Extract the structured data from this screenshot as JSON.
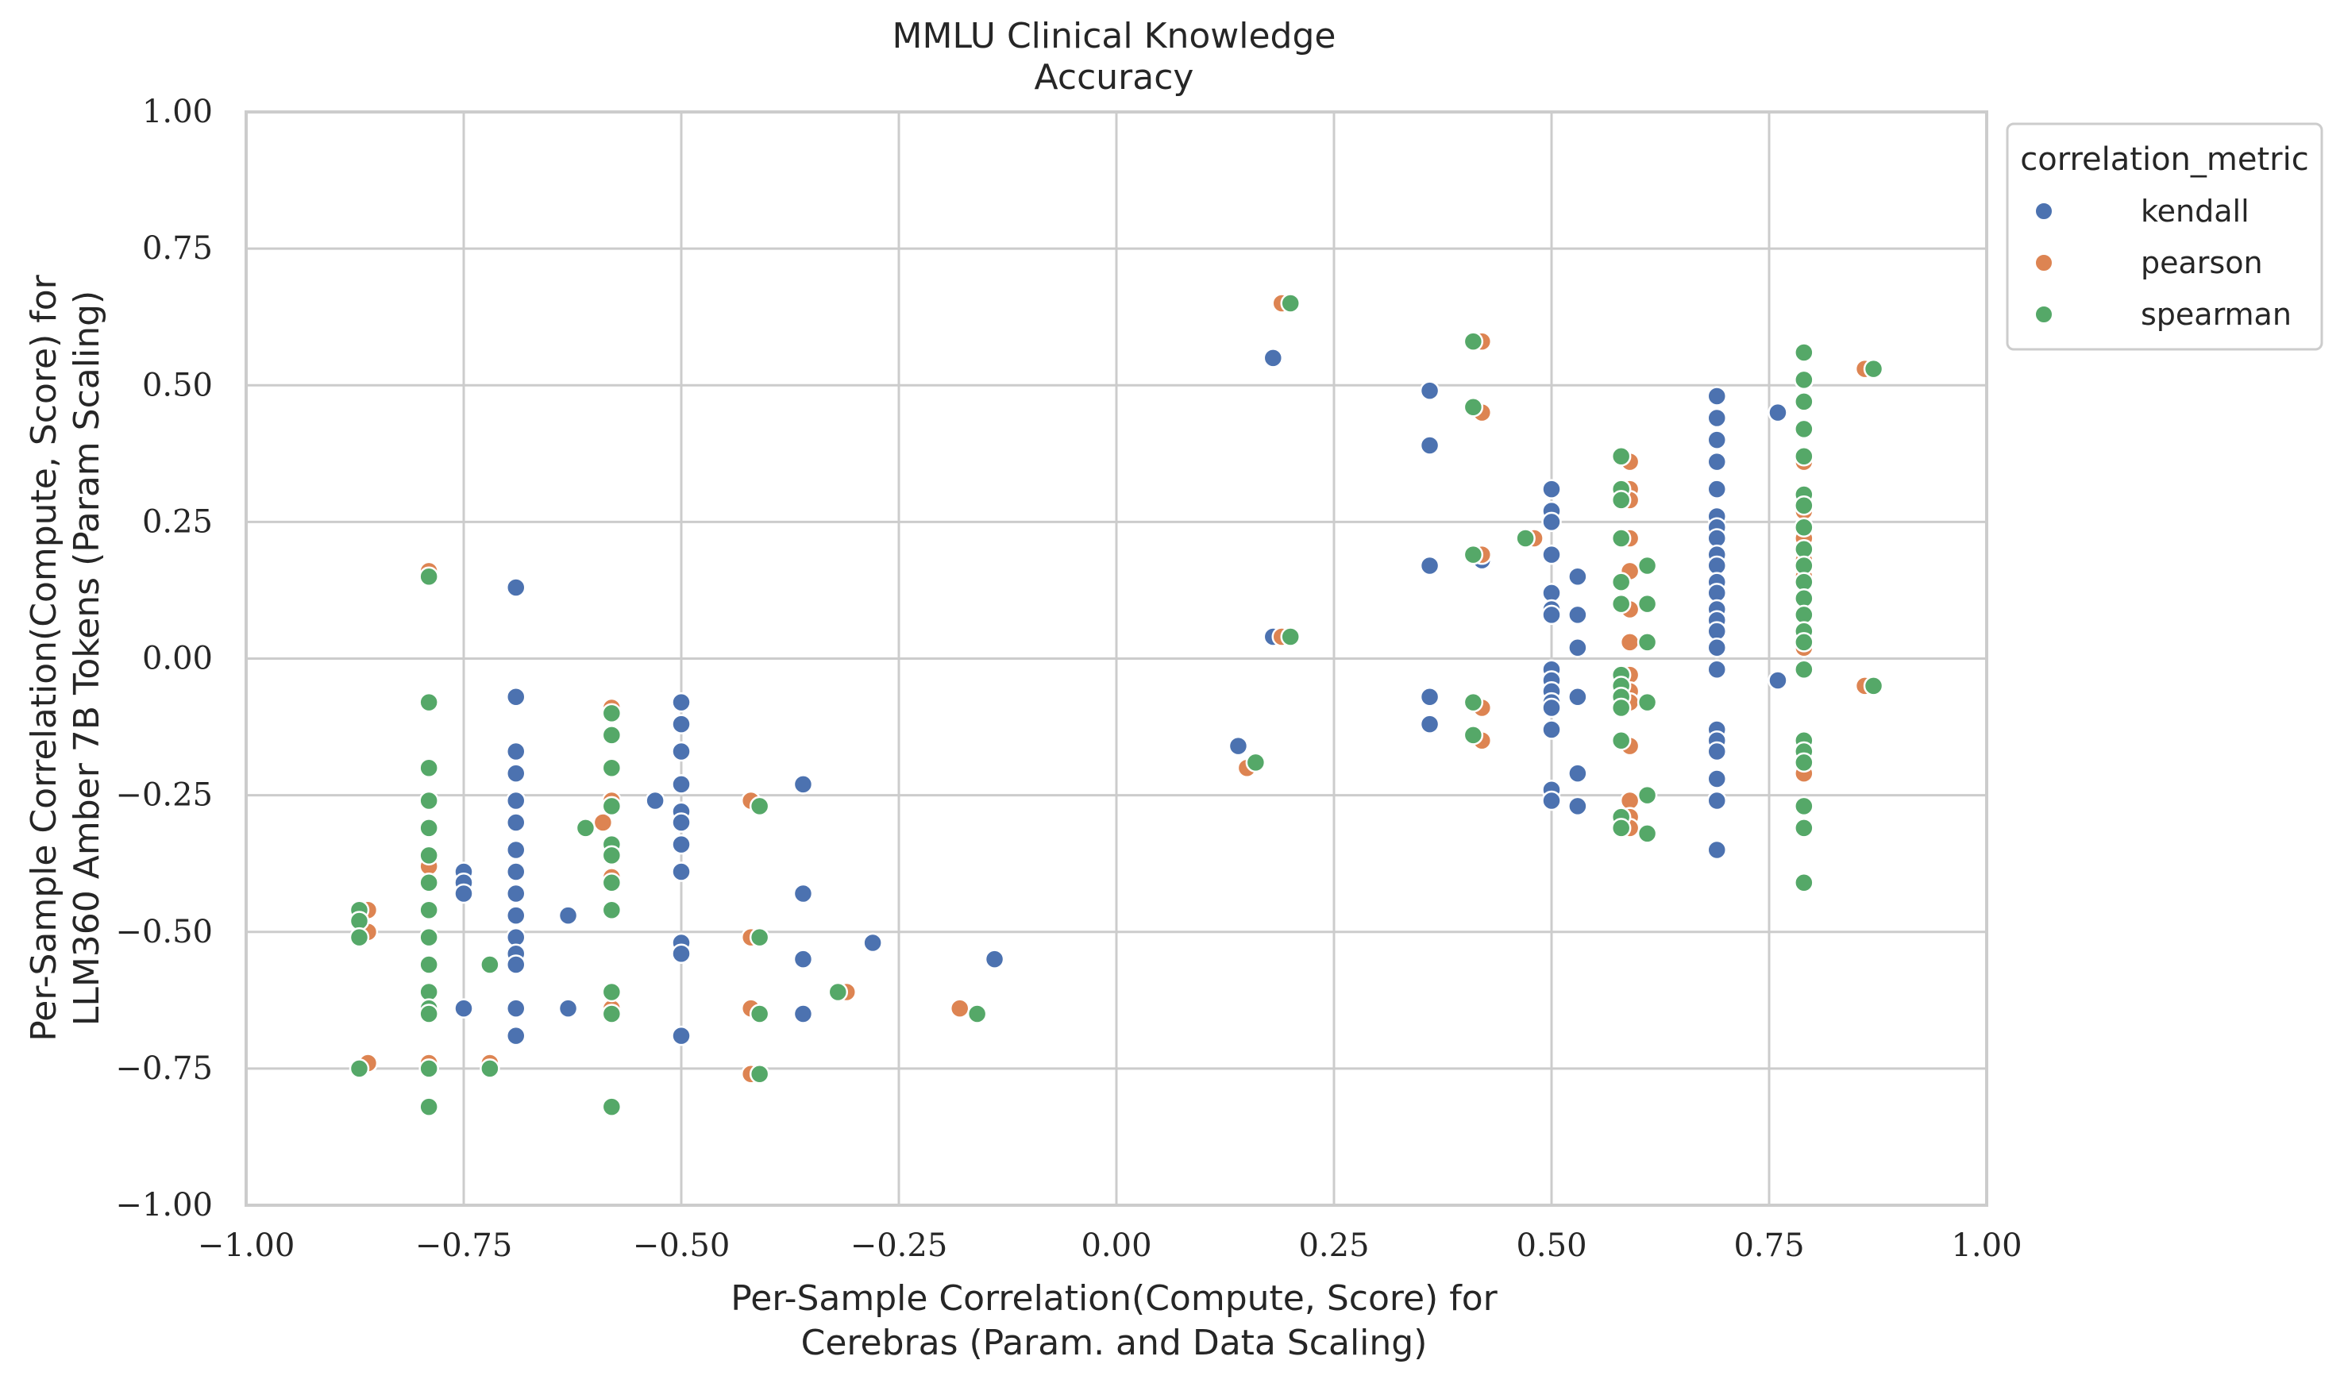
{
  "chart_data": {
    "type": "scatter",
    "title": "MMLU Clinical Knowledge\nAccuracy",
    "xlabel": "Per-Sample Correlation(Compute, Score) for\nCerebras (Param. and Data Scaling)",
    "ylabel": "Per-Sample Correlation(Compute, Score) for\nLLM360 Amber 7B Tokens (Param Scaling)",
    "xlim": [
      -1.0,
      1.0
    ],
    "ylim": [
      -1.0,
      1.0
    ],
    "xticks": [
      "−1.00",
      "−0.75",
      "−0.50",
      "−0.25",
      "0.00",
      "0.25",
      "0.50",
      "0.75",
      "1.00"
    ],
    "yticks": [
      "−1.00",
      "−0.75",
      "−0.50",
      "−0.25",
      "0.00",
      "0.25",
      "0.50",
      "0.75",
      "1.00"
    ],
    "xtick_values": [
      -1.0,
      -0.75,
      -0.5,
      -0.25,
      0.0,
      0.25,
      0.5,
      0.75,
      1.0
    ],
    "ytick_values": [
      -1.0,
      -0.75,
      -0.5,
      -0.25,
      0.0,
      0.25,
      0.5,
      0.75,
      1.0
    ],
    "grid": true,
    "legend": {
      "title": "correlation_metric",
      "placement": "outside-top-right"
    },
    "series": [
      {
        "name": "kendall",
        "color": "#4c72b0",
        "points": [
          [
            -0.75,
            -0.39
          ],
          [
            -0.75,
            -0.41
          ],
          [
            -0.75,
            -0.43
          ],
          [
            -0.75,
            -0.64
          ],
          [
            -0.69,
            0.13
          ],
          [
            -0.69,
            -0.07
          ],
          [
            -0.69,
            -0.17
          ],
          [
            -0.69,
            -0.21
          ],
          [
            -0.69,
            -0.26
          ],
          [
            -0.69,
            -0.3
          ],
          [
            -0.69,
            -0.35
          ],
          [
            -0.69,
            -0.39
          ],
          [
            -0.69,
            -0.43
          ],
          [
            -0.69,
            -0.47
          ],
          [
            -0.69,
            -0.51
          ],
          [
            -0.69,
            -0.54
          ],
          [
            -0.69,
            -0.56
          ],
          [
            -0.69,
            -0.64
          ],
          [
            -0.69,
            -0.69
          ],
          [
            -0.63,
            -0.47
          ],
          [
            -0.63,
            -0.64
          ],
          [
            -0.53,
            -0.26
          ],
          [
            -0.5,
            -0.08
          ],
          [
            -0.5,
            -0.12
          ],
          [
            -0.5,
            -0.17
          ],
          [
            -0.5,
            -0.23
          ],
          [
            -0.5,
            -0.28
          ],
          [
            -0.5,
            -0.3
          ],
          [
            -0.5,
            -0.34
          ],
          [
            -0.5,
            -0.39
          ],
          [
            -0.5,
            -0.52
          ],
          [
            -0.5,
            -0.54
          ],
          [
            -0.5,
            -0.69
          ],
          [
            -0.36,
            -0.23
          ],
          [
            -0.36,
            -0.43
          ],
          [
            -0.36,
            -0.55
          ],
          [
            -0.36,
            -0.65
          ],
          [
            -0.28,
            -0.52
          ],
          [
            -0.14,
            -0.55
          ],
          [
            0.14,
            -0.16
          ],
          [
            0.18,
            0.55
          ],
          [
            0.18,
            0.04
          ],
          [
            0.36,
            0.49
          ],
          [
            0.36,
            0.39
          ],
          [
            0.36,
            0.17
          ],
          [
            0.36,
            -0.07
          ],
          [
            0.36,
            -0.12
          ],
          [
            0.42,
            0.18
          ],
          [
            0.5,
            0.31
          ],
          [
            0.5,
            0.27
          ],
          [
            0.5,
            0.25
          ],
          [
            0.5,
            0.19
          ],
          [
            0.5,
            0.12
          ],
          [
            0.5,
            0.09
          ],
          [
            0.5,
            0.08
          ],
          [
            0.5,
            -0.02
          ],
          [
            0.5,
            -0.04
          ],
          [
            0.5,
            -0.06
          ],
          [
            0.5,
            -0.08
          ],
          [
            0.5,
            -0.09
          ],
          [
            0.5,
            -0.13
          ],
          [
            0.5,
            -0.24
          ],
          [
            0.5,
            -0.26
          ],
          [
            0.53,
            0.15
          ],
          [
            0.53,
            0.08
          ],
          [
            0.53,
            0.02
          ],
          [
            0.53,
            -0.07
          ],
          [
            0.53,
            -0.21
          ],
          [
            0.53,
            -0.27
          ],
          [
            0.69,
            0.48
          ],
          [
            0.69,
            0.44
          ],
          [
            0.69,
            0.4
          ],
          [
            0.69,
            0.36
          ],
          [
            0.69,
            0.31
          ],
          [
            0.69,
            0.26
          ],
          [
            0.69,
            0.24
          ],
          [
            0.69,
            0.22
          ],
          [
            0.69,
            0.19
          ],
          [
            0.69,
            0.17
          ],
          [
            0.69,
            0.14
          ],
          [
            0.69,
            0.12
          ],
          [
            0.69,
            0.09
          ],
          [
            0.69,
            0.07
          ],
          [
            0.69,
            0.05
          ],
          [
            0.69,
            0.02
          ],
          [
            0.69,
            -0.02
          ],
          [
            0.69,
            -0.13
          ],
          [
            0.69,
            -0.15
          ],
          [
            0.69,
            -0.17
          ],
          [
            0.69,
            -0.22
          ],
          [
            0.69,
            -0.26
          ],
          [
            0.69,
            -0.35
          ],
          [
            0.76,
            0.45
          ],
          [
            0.76,
            -0.04
          ]
        ]
      },
      {
        "name": "pearson",
        "color": "#dd8452",
        "points": [
          [
            -0.86,
            -0.46
          ],
          [
            -0.86,
            -0.5
          ],
          [
            -0.86,
            -0.74
          ],
          [
            -0.79,
            0.16
          ],
          [
            -0.79,
            -0.08
          ],
          [
            -0.79,
            -0.2
          ],
          [
            -0.79,
            -0.36
          ],
          [
            -0.79,
            -0.38
          ],
          [
            -0.79,
            -0.64
          ],
          [
            -0.79,
            -0.74
          ],
          [
            -0.72,
            -0.74
          ],
          [
            -0.59,
            -0.3
          ],
          [
            -0.58,
            -0.09
          ],
          [
            -0.58,
            -0.14
          ],
          [
            -0.58,
            -0.2
          ],
          [
            -0.58,
            -0.26
          ],
          [
            -0.58,
            -0.34
          ],
          [
            -0.58,
            -0.4
          ],
          [
            -0.58,
            -0.46
          ],
          [
            -0.58,
            -0.61
          ],
          [
            -0.58,
            -0.64
          ],
          [
            -0.58,
            -0.82
          ],
          [
            -0.42,
            -0.26
          ],
          [
            -0.42,
            -0.51
          ],
          [
            -0.42,
            -0.64
          ],
          [
            -0.42,
            -0.76
          ],
          [
            -0.31,
            -0.61
          ],
          [
            -0.18,
            -0.64
          ],
          [
            0.15,
            -0.2
          ],
          [
            0.19,
            0.65
          ],
          [
            0.19,
            0.04
          ],
          [
            0.42,
            0.58
          ],
          [
            0.42,
            0.45
          ],
          [
            0.42,
            0.19
          ],
          [
            0.42,
            -0.09
          ],
          [
            0.42,
            -0.15
          ],
          [
            0.48,
            0.22
          ],
          [
            0.59,
            0.36
          ],
          [
            0.59,
            0.31
          ],
          [
            0.59,
            0.29
          ],
          [
            0.59,
            0.22
          ],
          [
            0.59,
            0.16
          ],
          [
            0.59,
            0.09
          ],
          [
            0.59,
            0.03
          ],
          [
            0.59,
            -0.03
          ],
          [
            0.59,
            -0.06
          ],
          [
            0.59,
            -0.08
          ],
          [
            0.59,
            -0.16
          ],
          [
            0.59,
            -0.26
          ],
          [
            0.59,
            -0.29
          ],
          [
            0.59,
            -0.31
          ],
          [
            0.79,
            0.51
          ],
          [
            0.79,
            0.47
          ],
          [
            0.79,
            0.42
          ],
          [
            0.79,
            0.36
          ],
          [
            0.79,
            0.3
          ],
          [
            0.79,
            0.27
          ],
          [
            0.79,
            0.22
          ],
          [
            0.79,
            0.18
          ],
          [
            0.79,
            0.15
          ],
          [
            0.79,
            0.11
          ],
          [
            0.79,
            0.08
          ],
          [
            0.79,
            0.04
          ],
          [
            0.79,
            0.02
          ],
          [
            0.79,
            -0.16
          ],
          [
            0.79,
            -0.21
          ],
          [
            0.79,
            -0.41
          ],
          [
            0.86,
            0.53
          ],
          [
            0.86,
            -0.05
          ]
        ]
      },
      {
        "name": "spearman",
        "color": "#55a868",
        "points": [
          [
            -0.87,
            -0.46
          ],
          [
            -0.87,
            -0.48
          ],
          [
            -0.87,
            -0.51
          ],
          [
            -0.87,
            -0.75
          ],
          [
            -0.79,
            0.15
          ],
          [
            -0.79,
            -0.08
          ],
          [
            -0.79,
            -0.2
          ],
          [
            -0.79,
            -0.26
          ],
          [
            -0.79,
            -0.31
          ],
          [
            -0.79,
            -0.36
          ],
          [
            -0.79,
            -0.41
          ],
          [
            -0.79,
            -0.46
          ],
          [
            -0.79,
            -0.51
          ],
          [
            -0.79,
            -0.56
          ],
          [
            -0.79,
            -0.61
          ],
          [
            -0.79,
            -0.64
          ],
          [
            -0.79,
            -0.65
          ],
          [
            -0.79,
            -0.75
          ],
          [
            -0.79,
            -0.82
          ],
          [
            -0.72,
            -0.56
          ],
          [
            -0.72,
            -0.75
          ],
          [
            -0.61,
            -0.31
          ],
          [
            -0.58,
            -0.1
          ],
          [
            -0.58,
            -0.14
          ],
          [
            -0.58,
            -0.2
          ],
          [
            -0.58,
            -0.27
          ],
          [
            -0.58,
            -0.34
          ],
          [
            -0.58,
            -0.36
          ],
          [
            -0.58,
            -0.41
          ],
          [
            -0.58,
            -0.46
          ],
          [
            -0.58,
            -0.61
          ],
          [
            -0.58,
            -0.65
          ],
          [
            -0.58,
            -0.82
          ],
          [
            -0.41,
            -0.27
          ],
          [
            -0.41,
            -0.51
          ],
          [
            -0.41,
            -0.65
          ],
          [
            -0.41,
            -0.76
          ],
          [
            -0.32,
            -0.61
          ],
          [
            -0.16,
            -0.65
          ],
          [
            0.16,
            -0.19
          ],
          [
            0.2,
            0.65
          ],
          [
            0.2,
            0.04
          ],
          [
            0.41,
            0.58
          ],
          [
            0.41,
            0.46
          ],
          [
            0.41,
            0.19
          ],
          [
            0.41,
            -0.08
          ],
          [
            0.41,
            -0.14
          ],
          [
            0.47,
            0.22
          ],
          [
            0.58,
            0.37
          ],
          [
            0.58,
            0.31
          ],
          [
            0.58,
            0.29
          ],
          [
            0.58,
            0.22
          ],
          [
            0.58,
            0.14
          ],
          [
            0.58,
            0.1
          ],
          [
            0.58,
            -0.03
          ],
          [
            0.58,
            -0.05
          ],
          [
            0.58,
            -0.07
          ],
          [
            0.58,
            -0.09
          ],
          [
            0.58,
            -0.15
          ],
          [
            0.58,
            -0.29
          ],
          [
            0.58,
            -0.31
          ],
          [
            0.61,
            0.17
          ],
          [
            0.61,
            0.1
          ],
          [
            0.61,
            0.03
          ],
          [
            0.61,
            -0.08
          ],
          [
            0.61,
            -0.25
          ],
          [
            0.61,
            -0.32
          ],
          [
            0.79,
            0.56
          ],
          [
            0.79,
            0.51
          ],
          [
            0.79,
            0.47
          ],
          [
            0.79,
            0.42
          ],
          [
            0.79,
            0.37
          ],
          [
            0.79,
            0.3
          ],
          [
            0.79,
            0.28
          ],
          [
            0.79,
            0.24
          ],
          [
            0.79,
            0.2
          ],
          [
            0.79,
            0.17
          ],
          [
            0.79,
            0.14
          ],
          [
            0.79,
            0.11
          ],
          [
            0.79,
            0.08
          ],
          [
            0.79,
            0.05
          ],
          [
            0.79,
            0.03
          ],
          [
            0.79,
            -0.02
          ],
          [
            0.79,
            -0.15
          ],
          [
            0.79,
            -0.17
          ],
          [
            0.79,
            -0.19
          ],
          [
            0.79,
            -0.27
          ],
          [
            0.79,
            -0.31
          ],
          [
            0.79,
            -0.41
          ],
          [
            0.87,
            0.53
          ],
          [
            0.87,
            -0.05
          ]
        ]
      }
    ]
  }
}
